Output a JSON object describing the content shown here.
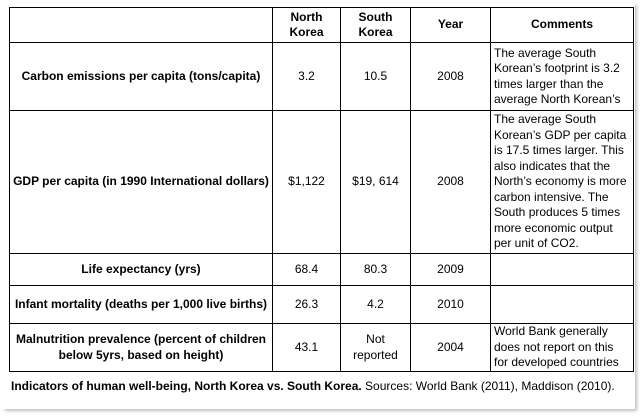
{
  "table": {
    "headers": [
      "",
      "North Korea",
      "South Korea",
      "Year",
      "Comments"
    ],
    "rows": [
      {
        "indicator": "Carbon emissions per capita (tons/capita)",
        "north": "3.2",
        "south": "10.5",
        "year": "2008",
        "comment": "The average South Korean’s footprint is 3.2 times larger than the average North Korean’s"
      },
      {
        "indicator": "GDP per capita (in 1990 International dollars)",
        "north": "$1,122",
        "south": "$19, 614",
        "year": "2008",
        "comment": "The average South Korean’s GDP per capita is 17.5 times larger. This also indicates that the North’s economy is more carbon intensive. The South produces 5 times more economic output per unit of CO2."
      },
      {
        "indicator": "Life expectancy (yrs)",
        "north": "68.4",
        "south": "80.3",
        "year": "2009",
        "comment": ""
      },
      {
        "indicator": "Infant mortality (deaths per 1,000 live births)",
        "north": "26.3",
        "south": "4.2",
        "year": "2010",
        "comment": ""
      },
      {
        "indicator": "Malnutrition prevalence (percent of children below 5yrs, based on height)",
        "north": "43.1",
        "south": "Not reported",
        "year": "2004",
        "comment": "World Bank generally does not report on this for developed countries"
      }
    ]
  },
  "caption": {
    "title": "Indicators of human well-being, North Korea vs. South Korea.",
    "sources": " Sources: World Bank (2011), Maddison (2010)."
  }
}
